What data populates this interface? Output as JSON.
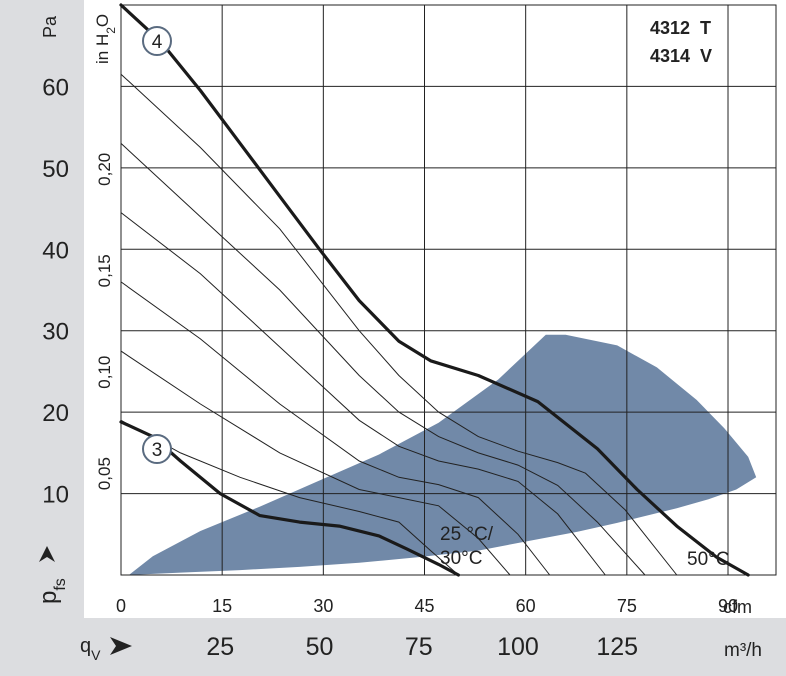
{
  "chart_data": {
    "type": "line",
    "title": "",
    "model_lines": [
      "4312  T",
      "4314  V"
    ],
    "ylabel": "p_fs",
    "y_unit_left": "Pa",
    "y_unit_inner": "in H2O",
    "xlabel": "q_V",
    "x_unit_top": "cfm",
    "x_unit_bottom": "m³/h",
    "ylim_pa": [
      0,
      70
    ],
    "xlim_m3h": [
      0,
      165
    ],
    "pa_ticks": [
      10,
      20,
      30,
      40,
      50,
      60
    ],
    "inh2o_ticks": [
      "0,05",
      "0,10",
      "0,15",
      "0,20"
    ],
    "inh2o_values": [
      0.05,
      0.1,
      0.15,
      0.2
    ],
    "cfm_ticks": [
      "0",
      "15",
      "30",
      "45",
      "60",
      "75",
      "90"
    ],
    "cfm_values": [
      0,
      15,
      30,
      45,
      60,
      75,
      90
    ],
    "m3h_ticks": [
      "25",
      "50",
      "75",
      "100",
      "125"
    ],
    "m3h_values": [
      25,
      50,
      75,
      100,
      125
    ],
    "grid": true,
    "annotations": {
      "temp_left": "25 °C/",
      "temp_left2": "30°C",
      "temp_right": "50°C"
    },
    "series": [
      {
        "name": "4",
        "x": [
          0,
          10,
          20,
          30,
          40,
          50,
          60,
          70,
          78,
          90,
          105,
          120,
          130,
          140,
          150,
          158
        ],
        "y": [
          70,
          65.5,
          59.5,
          53,
          46.5,
          40,
          33.7,
          28.7,
          26.3,
          24.5,
          21.3,
          15.5,
          10.5,
          6,
          2.2,
          0
        ]
      },
      {
        "name": "3",
        "x": [
          0,
          8,
          15,
          25,
          35,
          45,
          55,
          65,
          72,
          80,
          85
        ],
        "y": [
          18.8,
          17,
          14,
          10,
          7.3,
          6.5,
          6,
          4.8,
          3.2,
          1.3,
          0
        ]
      }
    ],
    "system_curves": [
      {
        "x": [
          0,
          20,
          40,
          60,
          70,
          80,
          90,
          100,
          110,
          117,
          127,
          140
        ],
        "y": [
          61.5,
          52.5,
          42.5,
          30,
          24.5,
          20,
          17,
          15.2,
          13.8,
          12.5,
          8,
          0
        ]
      },
      {
        "x": [
          0,
          20,
          40,
          60,
          70,
          80,
          90,
          100,
          110,
          120,
          132
        ],
        "y": [
          53,
          44,
          35,
          24.5,
          20,
          17,
          15,
          13.5,
          11,
          6.5,
          0
        ]
      },
      {
        "x": [
          0,
          20,
          40,
          60,
          70,
          80,
          90,
          100,
          110,
          122
        ],
        "y": [
          44.5,
          37,
          28,
          19,
          15.8,
          14,
          13,
          11.5,
          7.5,
          0
        ]
      },
      {
        "x": [
          0,
          20,
          40,
          60,
          70,
          80,
          90,
          100,
          108
        ],
        "y": [
          36,
          29,
          21,
          14,
          12,
          11.1,
          9.5,
          5,
          0
        ]
      },
      {
        "x": [
          0,
          20,
          40,
          60,
          70,
          80,
          90,
          98
        ],
        "y": [
          27.5,
          21,
          15,
          10.5,
          9.5,
          8.5,
          4.5,
          0
        ]
      },
      {
        "x": [
          0,
          15,
          30,
          45,
          60,
          70,
          78,
          85
        ],
        "y": [
          19,
          15,
          12,
          9.5,
          7.8,
          6.5,
          3,
          0
        ]
      }
    ],
    "operating_area": {
      "color": "#7189a8",
      "x": [
        2,
        15,
        30,
        45,
        60,
        75,
        90,
        105,
        115,
        125,
        140,
        148,
        155,
        160,
        158,
        152,
        145,
        135,
        125,
        112,
        107,
        95,
        80,
        65,
        50,
        35,
        20,
        8,
        2
      ],
      "y": [
        0,
        0.3,
        0.6,
        1.0,
        1.5,
        2.2,
        3.0,
        4.4,
        5.3,
        6.4,
        8.2,
        9.3,
        10.5,
        12,
        14.5,
        18,
        21.5,
        25.5,
        28.2,
        29.5,
        29.5,
        24,
        18.7,
        14.8,
        11.6,
        8.4,
        5.4,
        2.3,
        0
      ]
    }
  }
}
